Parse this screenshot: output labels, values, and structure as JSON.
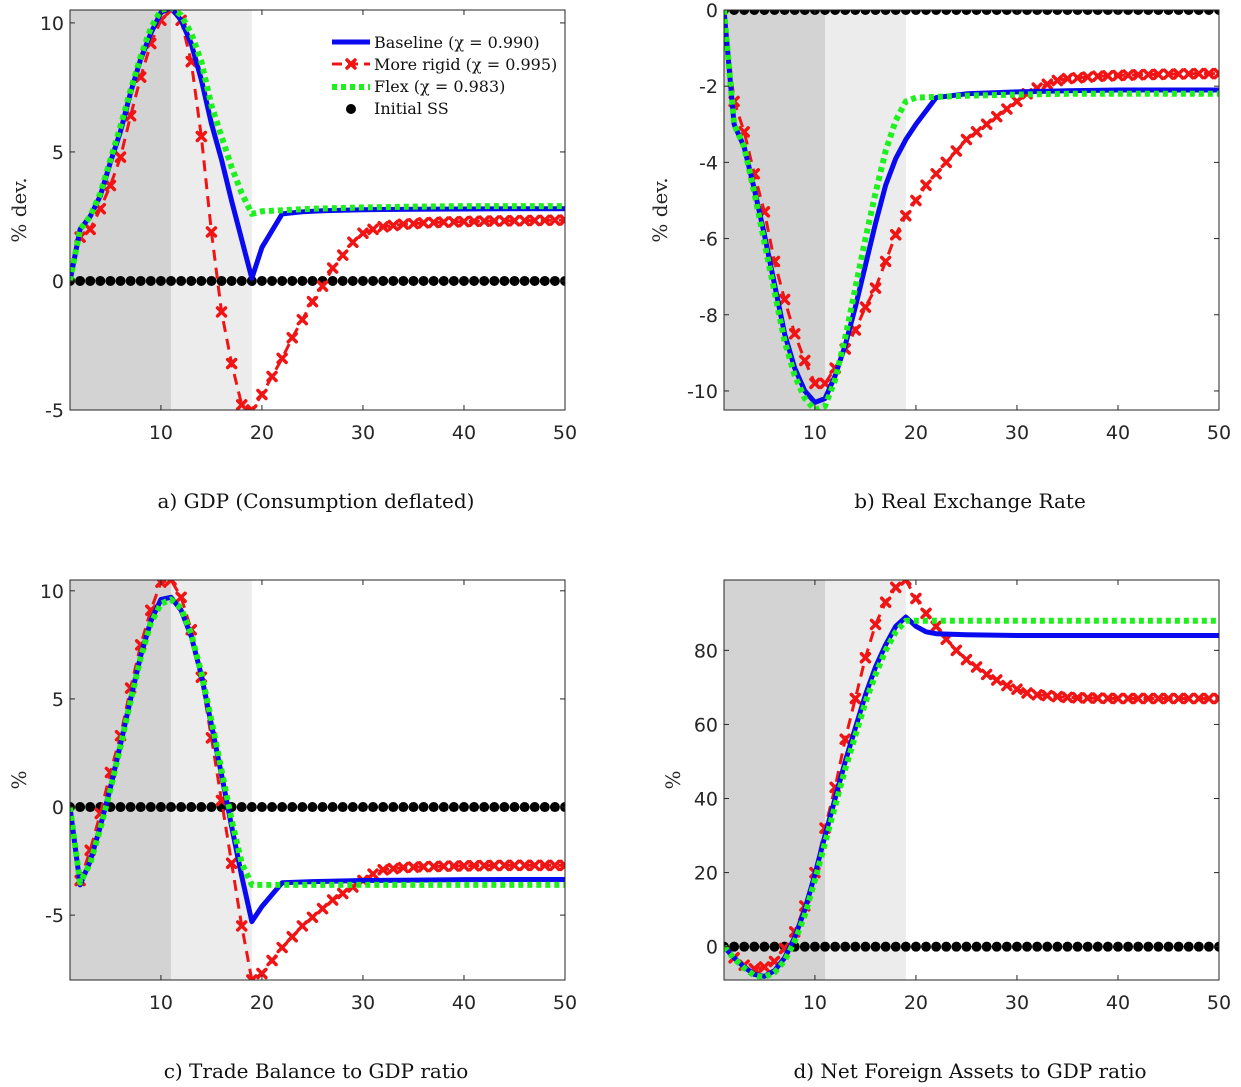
{
  "colors": {
    "baseline": "#0a0af0",
    "more_rigid": "#f01414",
    "flex": "#1ef01e",
    "initial_ss": "#000000",
    "shade_dark": "#d3d3d3",
    "shade_light": "#ececec"
  },
  "legend": [
    "Baseline (χ = 0.990)",
    "More rigid (χ = 0.995)",
    "Flex (χ = 0.983)",
    "Initial SS"
  ],
  "chart_data": [
    {
      "type": "line",
      "caption": "a) GDP (Consumption deflated)",
      "ylabel": "% dev.",
      "xlim": [
        1,
        50
      ],
      "ylim": [
        -5,
        10.5
      ],
      "xticks": [
        10,
        20,
        30,
        40,
        50
      ],
      "yticks": [
        -5,
        0,
        5,
        10
      ],
      "shaded": [
        {
          "x": [
            1,
            11
          ],
          "tone": "dark"
        },
        {
          "x": [
            11,
            19
          ],
          "tone": "light"
        }
      ],
      "legend_position": "top-right",
      "series": [
        {
          "name": "Baseline (χ = 0.990)",
          "style": "solid",
          "x": [
            1,
            2,
            3,
            4,
            5,
            6,
            7,
            8,
            9,
            10,
            11,
            12,
            13,
            14,
            15,
            16,
            17,
            18,
            19,
            20,
            22,
            24,
            26,
            30,
            35,
            40,
            45,
            50
          ],
          "y": [
            0,
            2.0,
            2.5,
            3.3,
            4.6,
            5.8,
            7.3,
            8.6,
            9.6,
            10.4,
            10.6,
            10.1,
            9.2,
            7.8,
            6.1,
            4.7,
            3.1,
            1.6,
            0.1,
            1.3,
            2.6,
            2.68,
            2.72,
            2.76,
            2.78,
            2.79,
            2.8,
            2.8
          ]
        },
        {
          "name": "More rigid (χ = 0.995)",
          "style": "dashed-x",
          "x": [
            1,
            2,
            3,
            4,
            5,
            6,
            7,
            8,
            9,
            10,
            11,
            12,
            13,
            14,
            15,
            16,
            17,
            18,
            19,
            20,
            21,
            22,
            23,
            24,
            25,
            26,
            27,
            28,
            29,
            30,
            31,
            32,
            33,
            34,
            35,
            36,
            38,
            40,
            42,
            44,
            46,
            48,
            50
          ],
          "y": [
            0,
            1.7,
            2.0,
            2.8,
            3.7,
            4.8,
            6.4,
            7.9,
            9.2,
            10.1,
            10.5,
            10.1,
            8.5,
            5.6,
            1.9,
            -1.2,
            -3.2,
            -4.8,
            -5.0,
            -4.4,
            -3.7,
            -3.0,
            -2.2,
            -1.5,
            -0.8,
            -0.2,
            0.5,
            1.0,
            1.5,
            1.85,
            2.0,
            2.1,
            2.15,
            2.2,
            2.22,
            2.25,
            2.28,
            2.3,
            2.32,
            2.33,
            2.34,
            2.35,
            2.36
          ]
        },
        {
          "name": "Flex (χ = 0.983)",
          "style": "dotted",
          "x": [
            1,
            2,
            3,
            4,
            5,
            6,
            7,
            8,
            9,
            10,
            11,
            12,
            13,
            14,
            15,
            16,
            17,
            18,
            19,
            20,
            25,
            30,
            35,
            40,
            45,
            50
          ],
          "y": [
            0,
            2.0,
            2.5,
            3.4,
            4.7,
            6.0,
            7.4,
            8.7,
            9.8,
            10.5,
            10.6,
            10.3,
            9.6,
            8.5,
            6.8,
            5.6,
            4.4,
            3.4,
            2.6,
            2.7,
            2.8,
            2.85,
            2.88,
            2.9,
            2.9,
            2.9
          ]
        },
        {
          "name": "Initial SS",
          "style": "dots",
          "x": [
            1,
            50
          ],
          "y": [
            0,
            0
          ]
        }
      ]
    },
    {
      "type": "line",
      "caption": "b) Real Exchange Rate",
      "ylabel": "% dev.",
      "xlim": [
        1,
        50
      ],
      "ylim": [
        -10.5,
        0
      ],
      "xticks": [
        10,
        20,
        30,
        40,
        50
      ],
      "yticks": [
        -10,
        -8,
        -6,
        -4,
        -2,
        0
      ],
      "shaded": [
        {
          "x": [
            1,
            11
          ],
          "tone": "dark"
        },
        {
          "x": [
            11,
            19
          ],
          "tone": "light"
        }
      ],
      "series": [
        {
          "name": "Baseline (χ = 0.990)",
          "style": "solid",
          "x": [
            1,
            2,
            3,
            4,
            5,
            6,
            7,
            8,
            9,
            10,
            11,
            12,
            13,
            14,
            15,
            16,
            17,
            18,
            19,
            20,
            22,
            25,
            30,
            35,
            40,
            45,
            50
          ],
          "y": [
            0,
            -3.0,
            -3.6,
            -4.7,
            -5.9,
            -7.2,
            -8.5,
            -9.4,
            -10.0,
            -10.3,
            -10.2,
            -9.6,
            -8.8,
            -7.8,
            -6.7,
            -5.6,
            -4.6,
            -3.9,
            -3.4,
            -3.0,
            -2.3,
            -2.2,
            -2.15,
            -2.12,
            -2.1,
            -2.1,
            -2.1
          ]
        },
        {
          "name": "More rigid (χ = 0.995)",
          "style": "dashed-x",
          "x": [
            1,
            2,
            3,
            4,
            5,
            6,
            7,
            8,
            9,
            10,
            11,
            12,
            13,
            14,
            15,
            16,
            17,
            18,
            19,
            20,
            21,
            22,
            23,
            24,
            25,
            26,
            27,
            28,
            29,
            30,
            31,
            32,
            33,
            34,
            35,
            36,
            38,
            40,
            42,
            44,
            46,
            48,
            50
          ],
          "y": [
            0,
            -2.4,
            -3.2,
            -4.3,
            -5.3,
            -6.6,
            -7.6,
            -8.5,
            -9.2,
            -9.8,
            -9.8,
            -9.4,
            -8.9,
            -8.4,
            -7.8,
            -7.3,
            -6.6,
            -5.9,
            -5.4,
            -5.0,
            -4.6,
            -4.3,
            -4.0,
            -3.7,
            -3.4,
            -3.2,
            -3.0,
            -2.8,
            -2.6,
            -2.4,
            -2.2,
            -2.05,
            -1.95,
            -1.85,
            -1.8,
            -1.78,
            -1.74,
            -1.72,
            -1.7,
            -1.69,
            -1.68,
            -1.67,
            -1.67
          ]
        },
        {
          "name": "Flex (χ = 0.983)",
          "style": "dotted",
          "x": [
            1,
            2,
            3,
            4,
            5,
            6,
            7,
            8,
            9,
            10,
            11,
            12,
            13,
            14,
            15,
            16,
            17,
            18,
            19,
            20,
            25,
            30,
            35,
            40,
            45,
            50
          ],
          "y": [
            0,
            -3.0,
            -3.6,
            -4.8,
            -6.1,
            -7.4,
            -8.7,
            -9.6,
            -10.2,
            -10.5,
            -10.4,
            -9.7,
            -8.6,
            -7.3,
            -6.0,
            -4.8,
            -3.7,
            -2.9,
            -2.4,
            -2.3,
            -2.25,
            -2.22,
            -2.2,
            -2.2,
            -2.2,
            -2.2
          ]
        },
        {
          "name": "Initial SS",
          "style": "dots",
          "x": [
            1,
            50
          ],
          "y": [
            0,
            0
          ]
        }
      ]
    },
    {
      "type": "line",
      "caption": "c) Trade Balance to GDP ratio",
      "ylabel": "%",
      "xlim": [
        1,
        50
      ],
      "ylim": [
        -8,
        10.5
      ],
      "xticks": [
        10,
        20,
        30,
        40,
        50
      ],
      "yticks": [
        -5,
        0,
        5,
        10
      ],
      "shaded": [
        {
          "x": [
            1,
            11
          ],
          "tone": "dark"
        },
        {
          "x": [
            11,
            19
          ],
          "tone": "light"
        }
      ],
      "series": [
        {
          "name": "Baseline (χ = 0.990)",
          "style": "solid",
          "x": [
            1,
            2,
            3,
            4,
            5,
            6,
            7,
            8,
            9,
            10,
            11,
            12,
            13,
            14,
            15,
            16,
            17,
            18,
            19,
            20,
            22,
            25,
            30,
            35,
            40,
            45,
            50
          ],
          "y": [
            0,
            -3.6,
            -2.5,
            -0.9,
            0.9,
            2.9,
            5.0,
            7.0,
            8.6,
            9.6,
            9.7,
            9.1,
            7.9,
            6.1,
            3.8,
            1.5,
            -0.9,
            -3.2,
            -5.3,
            -4.6,
            -3.5,
            -3.45,
            -3.4,
            -3.38,
            -3.36,
            -3.35,
            -3.35
          ]
        },
        {
          "name": "More rigid (χ = 0.995)",
          "style": "dashed-x",
          "x": [
            1,
            2,
            3,
            4,
            5,
            6,
            7,
            8,
            9,
            10,
            11,
            12,
            13,
            14,
            15,
            16,
            17,
            18,
            19,
            20,
            21,
            22,
            23,
            24,
            25,
            26,
            27,
            28,
            29,
            30,
            31,
            32,
            33,
            34,
            35,
            36,
            38,
            40,
            42,
            44,
            46,
            48,
            50
          ],
          "y": [
            0,
            -3.4,
            -2.0,
            -0.3,
            1.6,
            3.3,
            5.5,
            7.5,
            9.1,
            10.4,
            10.5,
            9.7,
            8.2,
            6.0,
            3.2,
            0.3,
            -2.6,
            -5.5,
            -8.0,
            -7.7,
            -7.1,
            -6.5,
            -6.0,
            -5.5,
            -5.1,
            -4.7,
            -4.3,
            -4.0,
            -3.7,
            -3.4,
            -3.1,
            -2.9,
            -2.85,
            -2.8,
            -2.78,
            -2.76,
            -2.74,
            -2.72,
            -2.71,
            -2.7,
            -2.7,
            -2.7,
            -2.7
          ]
        },
        {
          "name": "Flex (χ = 0.983)",
          "style": "dotted",
          "x": [
            1,
            2,
            3,
            4,
            5,
            6,
            7,
            8,
            9,
            10,
            11,
            12,
            13,
            14,
            15,
            16,
            17,
            18,
            19,
            20,
            25,
            30,
            35,
            40,
            45,
            50
          ],
          "y": [
            0,
            -3.5,
            -2.6,
            -1.0,
            0.8,
            2.8,
            4.9,
            6.9,
            8.5,
            9.4,
            9.6,
            9.2,
            8.0,
            6.2,
            4.0,
            1.7,
            -0.6,
            -2.6,
            -3.6,
            -3.6,
            -3.6,
            -3.6,
            -3.6,
            -3.6,
            -3.6,
            -3.6
          ]
        },
        {
          "name": "Initial SS",
          "style": "dots",
          "x": [
            1,
            50
          ],
          "y": [
            0,
            0
          ]
        }
      ]
    },
    {
      "type": "line",
      "caption": "d) Net Foreign Assets to GDP ratio",
      "ylabel": "%",
      "xlim": [
        1,
        50
      ],
      "ylim": [
        -9,
        99
      ],
      "xticks": [
        10,
        20,
        30,
        40,
        50
      ],
      "yticks": [
        0,
        20,
        40,
        60,
        80
      ],
      "shaded": [
        {
          "x": [
            1,
            11
          ],
          "tone": "dark"
        },
        {
          "x": [
            11,
            19
          ],
          "tone": "light"
        }
      ],
      "series": [
        {
          "name": "Baseline (χ = 0.990)",
          "style": "solid",
          "x": [
            1,
            2,
            3,
            4,
            5,
            6,
            7,
            8,
            9,
            10,
            11,
            12,
            13,
            14,
            15,
            16,
            17,
            18,
            19,
            20,
            21,
            22,
            25,
            30,
            35,
            40,
            45,
            50
          ],
          "y": [
            0,
            -3.0,
            -5.5,
            -7.5,
            -8.0,
            -6.5,
            -3.0,
            2.5,
            10.0,
            19.5,
            30.0,
            40.0,
            50.0,
            59.0,
            68.0,
            75.5,
            81.5,
            86.5,
            89.0,
            86.5,
            85.0,
            84.5,
            84.2,
            84.0,
            84.0,
            84.0,
            84.0,
            84.0
          ]
        },
        {
          "name": "More rigid (χ = 0.995)",
          "style": "dashed-x",
          "x": [
            1,
            2,
            3,
            4,
            5,
            6,
            7,
            8,
            9,
            10,
            11,
            12,
            13,
            14,
            15,
            16,
            17,
            18,
            19,
            20,
            21,
            22,
            23,
            24,
            25,
            26,
            27,
            28,
            29,
            30,
            31,
            32,
            33,
            34,
            35,
            36,
            38,
            40,
            42,
            44,
            46,
            48,
            50
          ],
          "y": [
            0,
            -3.0,
            -5.0,
            -6.0,
            -5.5,
            -4.0,
            -0.5,
            4.0,
            11.0,
            20.0,
            32.0,
            43.0,
            56.0,
            67.0,
            78.0,
            87.0,
            93.0,
            97.0,
            99.0,
            94.0,
            90.0,
            86.5,
            83.0,
            80.0,
            77.5,
            75.5,
            73.5,
            72.0,
            70.5,
            69.5,
            68.5,
            68.0,
            67.8,
            67.5,
            67.3,
            67.2,
            67.1,
            67.0,
            67.0,
            67.0,
            67.0,
            67.0,
            67.0
          ]
        },
        {
          "name": "Flex (χ = 0.983)",
          "style": "dotted",
          "x": [
            1,
            2,
            3,
            4,
            5,
            6,
            7,
            8,
            9,
            10,
            11,
            12,
            13,
            14,
            15,
            16,
            17,
            18,
            19,
            20,
            22,
            25,
            30,
            35,
            40,
            45,
            50
          ],
          "y": [
            0,
            -3.2,
            -5.8,
            -7.8,
            -8.2,
            -7.0,
            -3.8,
            1.5,
            8.5,
            18.0,
            28.0,
            38.0,
            48.0,
            57.0,
            66.0,
            73.5,
            80.0,
            85.0,
            88.0,
            88.0,
            88.0,
            88.0,
            88.0,
            88.0,
            88.0,
            88.0,
            88.0
          ]
        },
        {
          "name": "Initial SS",
          "style": "dots",
          "x": [
            1,
            50
          ],
          "y": [
            0,
            0
          ]
        }
      ]
    }
  ]
}
